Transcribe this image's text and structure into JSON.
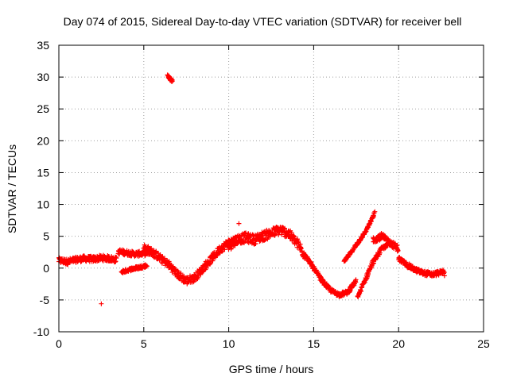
{
  "chart_data": {
    "type": "scatter",
    "title": "Day 074 of 2015, Sidereal Day-to-day VTEC variation (SDTVAR) for receiver bell",
    "xlabel": "GPS time / hours",
    "ylabel": "SDTVAR / TECUs",
    "xlim": [
      0,
      25
    ],
    "ylim": [
      -10,
      35
    ],
    "xticks": [
      0,
      5,
      10,
      15,
      20,
      25
    ],
    "yticks": [
      -10,
      -5,
      0,
      5,
      10,
      15,
      20,
      25,
      30,
      35
    ],
    "xtick_labels": [
      "0",
      "5",
      "10",
      "15",
      "20",
      "25"
    ],
    "ytick_labels": [
      "-10",
      "-5",
      "0",
      "5",
      "10",
      "15",
      "20",
      "25",
      "30",
      "35"
    ],
    "grid": true,
    "marker": "+",
    "series": [
      {
        "name": "SDTVAR",
        "color": "#ff0000",
        "bands": [
          {
            "x": [
              0.0,
              0.5,
              1.0,
              1.5,
              2.0,
              2.5,
              3.0,
              3.4
            ],
            "y": [
              1.2,
              1.0,
              1.3,
              1.5,
              1.4,
              1.6,
              1.5,
              1.3
            ],
            "spread": 0.9
          },
          {
            "x": [
              3.5,
              4.0,
              4.5,
              5.0,
              5.4
            ],
            "y": [
              2.6,
              2.4,
              2.2,
              2.3,
              2.5
            ],
            "spread": 0.8
          },
          {
            "x": [
              3.7,
              4.2,
              4.7,
              5.2
            ],
            "y": [
              -0.6,
              -0.2,
              0.1,
              0.4
            ],
            "spread": 0.5
          },
          {
            "x": [
              5.0,
              5.5,
              6.0,
              6.5,
              7.0,
              7.5,
              8.0,
              8.5,
              9.0,
              9.5,
              10.0,
              10.5
            ],
            "y": [
              3.2,
              2.5,
              1.5,
              0.5,
              -1.0,
              -2.0,
              -1.5,
              0.0,
              1.5,
              3.0,
              4.0,
              4.5
            ],
            "spread": 1.2
          },
          {
            "x": [
              10.0,
              10.5,
              11.0,
              11.5,
              12.0,
              12.5,
              13.0,
              13.5,
              14.0,
              14.5
            ],
            "y": [
              3.5,
              4.5,
              4.8,
              4.5,
              5.0,
              5.5,
              6.0,
              5.5,
              4.0,
              2.0
            ],
            "spread": 1.5
          },
          {
            "x": [
              14.5,
              15.0,
              15.5,
              16.0,
              16.5,
              17.0,
              17.5
            ],
            "y": [
              2.0,
              0.0,
              -2.0,
              -3.5,
              -4.2,
              -3.8,
              -2.0
            ],
            "spread": 0.6
          },
          {
            "x": [
              16.8,
              17.2,
              17.6,
              18.0,
              18.4,
              18.6
            ],
            "y": [
              1.0,
              2.5,
              4.0,
              5.5,
              7.5,
              8.8
            ],
            "spread": 0.4
          },
          {
            "x": [
              17.6,
              18.0,
              18.5,
              19.0,
              19.5
            ],
            "y": [
              -4.5,
              -2.0,
              1.0,
              3.0,
              4.0
            ],
            "spread": 0.6
          },
          {
            "x": [
              18.5,
              19.0,
              19.5,
              20.0
            ],
            "y": [
              4.5,
              5.0,
              4.0,
              3.0
            ],
            "spread": 1.0
          },
          {
            "x": [
              20.0,
              20.5,
              21.0,
              21.5,
              22.0,
              22.5,
              22.7
            ],
            "y": [
              1.5,
              0.5,
              -0.3,
              -0.8,
              -1.0,
              -0.7,
              -0.5
            ],
            "spread": 0.7
          },
          {
            "x": [
              6.4,
              6.5,
              6.6,
              6.7
            ],
            "y": [
              30.2,
              29.9,
              29.6,
              29.3
            ],
            "spread": 0.4
          }
        ],
        "outliers": [
          {
            "x": 2.5,
            "y": -5.6
          },
          {
            "x": 0.0,
            "y": 1.6
          },
          {
            "x": 10.6,
            "y": 7.0
          },
          {
            "x": 22.7,
            "y": -1.2
          }
        ]
      }
    ]
  }
}
